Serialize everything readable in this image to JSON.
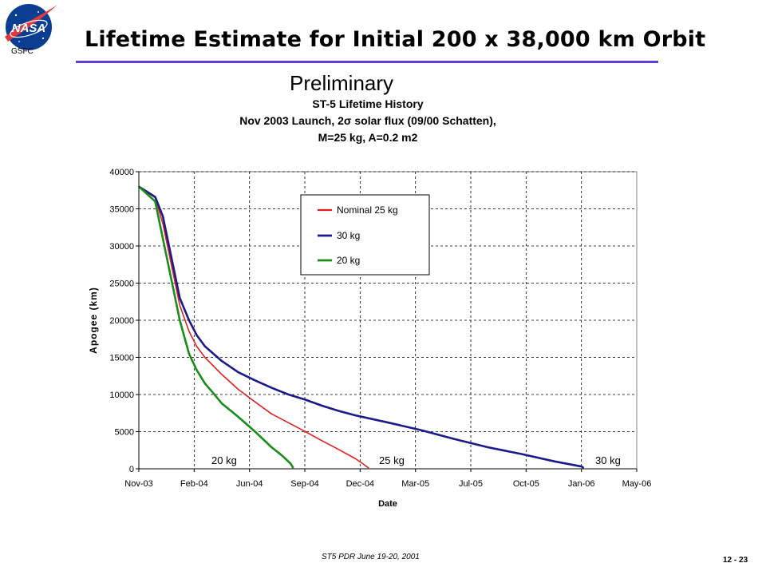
{
  "header": {
    "org_label": "GSFC",
    "logo_icon": "nasa-meatball-logo-icon",
    "title": "Lifetime Estimate for Initial 200 x 38,000 km Orbit",
    "title_rule_color": "#5b3fd6",
    "stamp": "Preliminary"
  },
  "footer": {
    "text": "ST5 PDR June 19-20, 2001",
    "page": "12 - 23"
  },
  "chart_data": {
    "type": "line",
    "title_lines": [
      "ST-5 Lifetime History",
      "Nov 2003 Launch, 2σ solar flux (09/00 Schatten),",
      "M=25 kg, A=0.2 m2"
    ],
    "xlabel": "Date",
    "ylabel": "Apogee (km)",
    "x_ticks": [
      "Nov-03",
      "Feb-04",
      "Jun-04",
      "Sep-04",
      "Dec-04",
      "Mar-05",
      "Jul-05",
      "Oct-05",
      "Jan-06",
      "May-06"
    ],
    "y_ticks": [
      0,
      5000,
      10000,
      15000,
      20000,
      25000,
      30000,
      35000,
      40000
    ],
    "xlim": [
      "2003-11-01",
      "2006-05-01"
    ],
    "ylim": [
      0,
      40000
    ],
    "grid": "major dashed",
    "legend_position": "upper-right-inside",
    "series": [
      {
        "name": "Nominal 25 kg",
        "color": "#e02020",
        "x": [
          "2003-11-01",
          "2003-12-01",
          "2003-12-15",
          "2004-01-01",
          "2004-01-15",
          "2004-02-01",
          "2004-02-15",
          "2004-03-01",
          "2004-04-01",
          "2004-05-01",
          "2004-06-01",
          "2004-07-01",
          "2004-08-01",
          "2004-09-01",
          "2004-10-01",
          "2004-11-01",
          "2004-12-01",
          "2004-12-15",
          "2004-12-26"
        ],
        "values": [
          38000,
          36500,
          33000,
          27000,
          22000,
          18500,
          16500,
          15000,
          12700,
          10700,
          9000,
          7400,
          6200,
          5000,
          3800,
          2600,
          1400,
          700,
          100
        ]
      },
      {
        "name": "30 kg",
        "color": "#1a1a8c",
        "x": [
          "2003-11-01",
          "2003-12-01",
          "2003-12-15",
          "2004-01-01",
          "2004-01-15",
          "2004-02-01",
          "2004-02-15",
          "2004-03-01",
          "2004-04-01",
          "2004-05-01",
          "2004-06-01",
          "2004-07-01",
          "2004-08-01",
          "2004-09-01",
          "2004-10-01",
          "2004-11-01",
          "2004-12-01",
          "2005-02-01",
          "2005-04-01",
          "2005-06-01",
          "2005-08-01",
          "2005-10-01",
          "2005-12-01",
          "2006-01-20",
          "2006-01-24"
        ],
        "values": [
          38000,
          36600,
          34000,
          28000,
          23000,
          20000,
          18000,
          16500,
          14500,
          13000,
          11900,
          10900,
          10000,
          9300,
          8500,
          7800,
          7200,
          6200,
          5200,
          4000,
          2900,
          2000,
          1000,
          300,
          100
        ]
      },
      {
        "name": "20 kg",
        "color": "#1a8c1a",
        "x": [
          "2003-11-01",
          "2003-12-01",
          "2003-12-15",
          "2004-01-01",
          "2004-01-15",
          "2004-02-01",
          "2004-02-15",
          "2004-03-01",
          "2004-03-15",
          "2004-04-01",
          "2004-05-01",
          "2004-06-01",
          "2004-07-01",
          "2004-07-20",
          "2004-08-05",
          "2004-08-10"
        ],
        "values": [
          38000,
          36000,
          31000,
          25000,
          20000,
          15500,
          13300,
          11500,
          10300,
          8800,
          7000,
          5000,
          2900,
          1800,
          700,
          100
        ]
      }
    ],
    "annotations": [
      "20 kg",
      "25 kg",
      "30 kg"
    ]
  }
}
